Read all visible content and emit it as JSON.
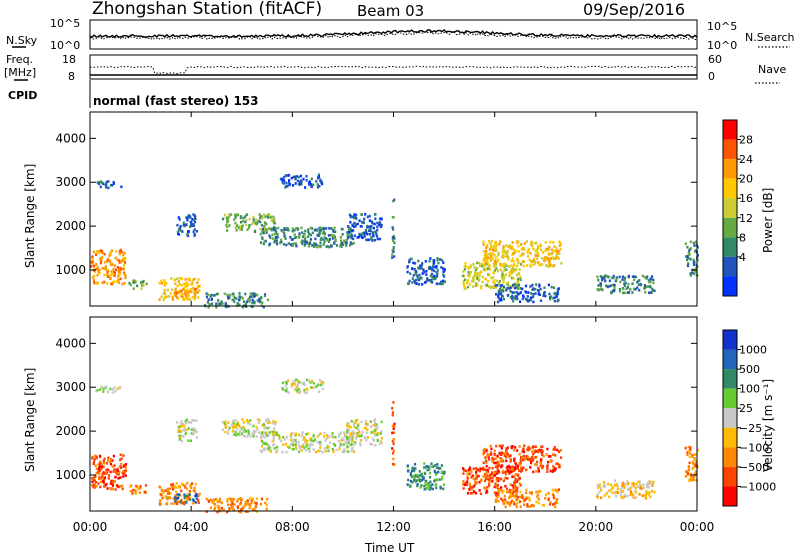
{
  "header": {
    "station_title": "Zhongshan Station (fitACF)",
    "beam_label": "Beam 03",
    "date": "09/Sep/2016"
  },
  "top_panels": {
    "nsky_label": "N.Sky",
    "nsky_ticks": [
      "10^5",
      "10^0"
    ],
    "nsearch_label": "N.Search",
    "nsearch_ticks": [
      "10^5",
      "10^0"
    ],
    "freq_label": "Freq.",
    "freq_unit": "[MHz]",
    "freq_ticks": [
      "18",
      "8"
    ],
    "nave_label": "Nave",
    "nave_ticks": [
      "60",
      "0"
    ],
    "cpid_label": "CPID",
    "cpid_text": "normal (fast stereo) 153"
  },
  "power_colorbar": {
    "label": "Power [dB]",
    "ticks": [
      "28",
      "24",
      "20",
      "16",
      "12",
      "8",
      "4"
    ],
    "colors": [
      "#ff0000",
      "#ff5500",
      "#ff9900",
      "#ffc800",
      "#cccc33",
      "#66aa44",
      "#338866",
      "#2255bb",
      "#0033ff"
    ]
  },
  "velocity_colorbar": {
    "label": "Velocity [m s⁻¹]",
    "ticks": [
      "1000",
      "500",
      "100",
      "25",
      "−25",
      "−100",
      "−500",
      "−1000"
    ],
    "colors": [
      "#1133cc",
      "#2266bb",
      "#338866",
      "#66cc33",
      "#c8c8c8",
      "#ffbb00",
      "#ff8800",
      "#ff4400",
      "#ff0000"
    ]
  },
  "axes": {
    "ylabel": "Slant Range [km]",
    "xlabel": "Time UT",
    "y_ticks": [
      "4000",
      "3000",
      "2000",
      "1000"
    ],
    "x_ticks": [
      "00:00",
      "04:00",
      "08:00",
      "12:00",
      "16:00",
      "20:00",
      "00:00"
    ]
  },
  "chart_data": [
    {
      "type": "heatmap",
      "name": "power",
      "xlabel": "Time UT",
      "ylabel": "Slant Range [km]",
      "xlim": [
        0,
        24
      ],
      "ylim": [
        180,
        4600
      ],
      "colorbar_label": "Power [dB]",
      "clusters": [
        {
          "t0": 0.0,
          "t1": 1.4,
          "r0": 700,
          "r1": 1500,
          "level": 2
        },
        {
          "t0": 0.2,
          "t1": 1.2,
          "r0": 2900,
          "r1": 3050,
          "level": 7
        },
        {
          "t0": 1.5,
          "t1": 2.2,
          "r0": 600,
          "r1": 800,
          "level": 5
        },
        {
          "t0": 2.7,
          "t1": 4.3,
          "r0": 350,
          "r1": 850,
          "level": 3
        },
        {
          "t0": 3.3,
          "t1": 4.2,
          "r0": 400,
          "r1": 600,
          "level": 2
        },
        {
          "t0": 3.4,
          "t1": 4.2,
          "r0": 1800,
          "r1": 2300,
          "level": 7
        },
        {
          "t0": 4.5,
          "t1": 7.0,
          "r0": 180,
          "r1": 500,
          "level": 6
        },
        {
          "t0": 5.2,
          "t1": 7.3,
          "r0": 1900,
          "r1": 2300,
          "level": 5
        },
        {
          "t0": 6.7,
          "t1": 10.4,
          "r0": 1550,
          "r1": 2000,
          "level": 6
        },
        {
          "t0": 7.5,
          "t1": 9.2,
          "r0": 2900,
          "r1": 3200,
          "level": 7
        },
        {
          "t0": 10.1,
          "t1": 11.5,
          "r0": 1700,
          "r1": 2300,
          "level": 7
        },
        {
          "t0": 11.9,
          "t1": 12.0,
          "r0": 1200,
          "r1": 2700,
          "level": 6
        },
        {
          "t0": 12.5,
          "t1": 14.0,
          "r0": 700,
          "r1": 1300,
          "level": 7
        },
        {
          "t0": 14.7,
          "t1": 17.0,
          "r0": 600,
          "r1": 1200,
          "level": 4
        },
        {
          "t0": 15.5,
          "t1": 18.6,
          "r0": 1100,
          "r1": 1700,
          "level": 3
        },
        {
          "t0": 16.0,
          "t1": 18.5,
          "r0": 300,
          "r1": 700,
          "level": 7
        },
        {
          "t0": 20.0,
          "t1": 22.3,
          "r0": 500,
          "r1": 900,
          "level": 6
        },
        {
          "t0": 23.5,
          "t1": 24.0,
          "r0": 900,
          "r1": 1700,
          "level": 6
        }
      ]
    },
    {
      "type": "heatmap",
      "name": "velocity",
      "xlabel": "Time UT",
      "ylabel": "Slant Range [km]",
      "xlim": [
        0,
        24
      ],
      "ylim": [
        180,
        4600
      ],
      "colorbar_label": "Velocity [m s⁻¹]",
      "clusters": [
        {
          "t0": 0.0,
          "t1": 1.4,
          "r0": 700,
          "r1": 1500,
          "level": 7
        },
        {
          "t0": 0.2,
          "t1": 1.2,
          "r0": 2900,
          "r1": 3050,
          "level": 4
        },
        {
          "t0": 1.5,
          "t1": 2.2,
          "r0": 600,
          "r1": 800,
          "level": 6
        },
        {
          "t0": 2.7,
          "t1": 4.3,
          "r0": 350,
          "r1": 850,
          "level": 6
        },
        {
          "t0": 3.3,
          "t1": 4.2,
          "r0": 400,
          "r1": 600,
          "level": 1
        },
        {
          "t0": 3.4,
          "t1": 4.2,
          "r0": 1800,
          "r1": 2300,
          "level": 4
        },
        {
          "t0": 4.5,
          "t1": 7.0,
          "r0": 180,
          "r1": 500,
          "level": 6
        },
        {
          "t0": 5.2,
          "t1": 7.3,
          "r0": 1900,
          "r1": 2300,
          "level": 4
        },
        {
          "t0": 6.7,
          "t1": 10.4,
          "r0": 1550,
          "r1": 2000,
          "level": 4
        },
        {
          "t0": 7.5,
          "t1": 9.2,
          "r0": 2900,
          "r1": 3200,
          "level": 4
        },
        {
          "t0": 10.1,
          "t1": 11.5,
          "r0": 1700,
          "r1": 2300,
          "level": 4
        },
        {
          "t0": 11.9,
          "t1": 12.0,
          "r0": 1200,
          "r1": 2700,
          "level": 7
        },
        {
          "t0": 12.5,
          "t1": 14.0,
          "r0": 700,
          "r1": 1300,
          "level": 2
        },
        {
          "t0": 14.7,
          "t1": 17.0,
          "r0": 600,
          "r1": 1200,
          "level": 7
        },
        {
          "t0": 15.5,
          "t1": 18.6,
          "r0": 1100,
          "r1": 1700,
          "level": 7
        },
        {
          "t0": 16.0,
          "t1": 18.5,
          "r0": 300,
          "r1": 700,
          "level": 6
        },
        {
          "t0": 20.0,
          "t1": 22.3,
          "r0": 500,
          "r1": 900,
          "level": 5
        },
        {
          "t0": 23.5,
          "t1": 24.0,
          "r0": 900,
          "r1": 1700,
          "level": 6
        }
      ]
    }
  ]
}
